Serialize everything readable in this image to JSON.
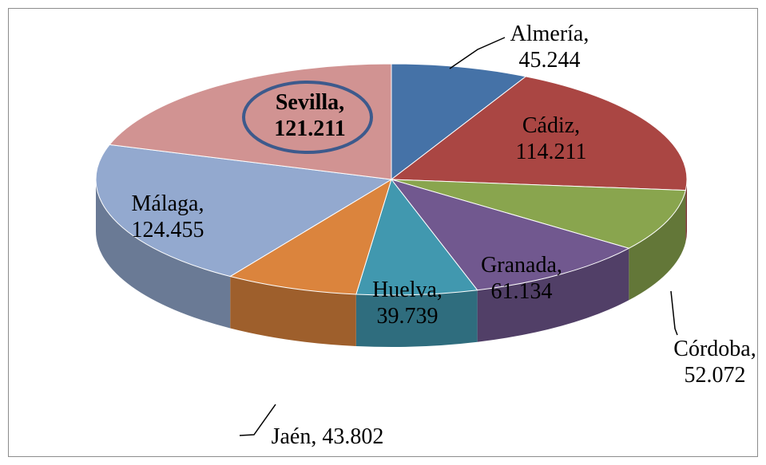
{
  "chart_data": {
    "type": "pie3d",
    "values": [
      45.244,
      114.211,
      52.072,
      61.134,
      39.739,
      43.802,
      124.455,
      121.211
    ],
    "value_labels": [
      "Almería,\n45.244",
      "Cádiz,\n114.211",
      "Córdoba,\n52.072",
      "Granada,\n61.134",
      "Huelva,\n39.739",
      "Jaén, 43.802",
      "Málaga,\n124.455",
      "Sevilla,\n121.211"
    ],
    "colors": [
      "#4572a7",
      "#aa4643",
      "#89a54e",
      "#71588f",
      "#4198af",
      "#db843d",
      "#93a9cf",
      "#d19392"
    ],
    "highlight_index": 7
  }
}
